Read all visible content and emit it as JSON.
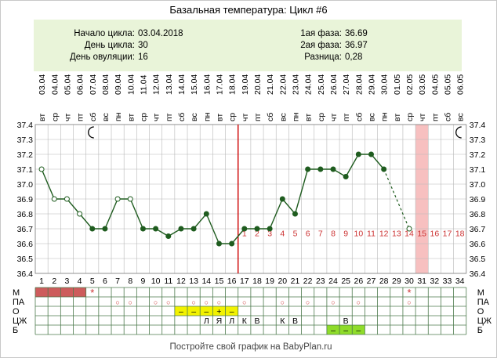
{
  "title": "Базальная температура: Цикл #6",
  "summary": {
    "left": [
      {
        "label": "Начало цикла:",
        "value": "03.04.2018"
      },
      {
        "label": "День цикла:",
        "value": "30"
      },
      {
        "label": "День овуляции:",
        "value": "16"
      }
    ],
    "right": [
      {
        "label": "1ая фаза:",
        "value": "36.69"
      },
      {
        "label": "2ая фаза:",
        "value": "36.97"
      },
      {
        "label": "Разница:",
        "value": "0,28"
      }
    ]
  },
  "footer": "Постройте свой график на BabyPlan.ru",
  "colors": {
    "line": "#1f5c1f",
    "ovulation": "#cc0000",
    "bg_panel": "#e9f4d9",
    "highlight": "#f7c0c0",
    "menses": "#cd5c5c",
    "mucus_yellow": "#f2f200",
    "ejac_green": "#8fdc2a",
    "post_day": "#cc3333",
    "grid": "#b8b8b8"
  },
  "icons": {
    "moon": "moon-icon",
    "star": "star-icon"
  },
  "chart_data": {
    "type": "line",
    "title": "Базальная температура: Цикл #6",
    "ylim": [
      36.4,
      37.4
    ],
    "yticks": [
      "37.4",
      "37.3",
      "37.2",
      "37.1",
      "37.0",
      "36.9",
      "36.8",
      "36.7",
      "36.6",
      "36.5",
      "36.4"
    ],
    "days": [
      1,
      2,
      3,
      4,
      5,
      6,
      7,
      8,
      9,
      10,
      11,
      12,
      13,
      14,
      15,
      16,
      17,
      18,
      19,
      20,
      21,
      22,
      23,
      24,
      25,
      26,
      27,
      28,
      29,
      30,
      31,
      32,
      33,
      34
    ],
    "dates": [
      "03.04",
      "04.04",
      "05.04",
      "06.04",
      "07.04",
      "08.04",
      "09.04",
      "10.04",
      "11.04",
      "12.04",
      "13.04",
      "14.04",
      "15.04",
      "16.04",
      "17.04",
      "18.04",
      "19.04",
      "20.04",
      "21.04",
      "22.04",
      "23.04",
      "24.04",
      "25.04",
      "26.04",
      "27.04",
      "28.04",
      "29.04",
      "30.04",
      "01.05",
      "02.05",
      "03.05",
      "04.05",
      "05.05",
      "06.05"
    ],
    "weekdays": [
      "вт",
      "ср",
      "чт",
      "пт",
      "сб",
      "вс",
      "пн",
      "вт",
      "ср",
      "чт",
      "пт",
      "сб",
      "вс",
      "пн",
      "вт",
      "ср",
      "чт",
      "пт",
      "сб",
      "вс",
      "пн",
      "вт",
      "ср",
      "чт",
      "пт",
      "сб",
      "вс",
      "пн",
      "вт",
      "ср",
      "чт",
      "пт",
      "сб",
      "вс"
    ],
    "temperatures": [
      37.1,
      36.9,
      36.9,
      36.8,
      36.7,
      36.7,
      36.9,
      36.9,
      36.7,
      36.7,
      36.65,
      36.7,
      36.7,
      36.8,
      36.6,
      36.6,
      36.7,
      36.7,
      36.7,
      36.9,
      36.8,
      37.1,
      37.1,
      37.1,
      37.05,
      37.2,
      37.2,
      37.1,
      null,
      36.7
    ],
    "hollow_points": [
      1,
      2,
      3,
      4,
      7,
      8,
      30
    ],
    "dashed_segment": [
      28,
      30
    ],
    "ovulation_day": 16,
    "post_ovulation_labels": [
      "1",
      "2",
      "3",
      "4",
      "5",
      "6",
      "7",
      "8",
      "9",
      "10",
      "11",
      "12",
      "13",
      "14",
      "15",
      "16",
      "17",
      "18"
    ],
    "highlight_day": 31,
    "moon_days": [
      5,
      34
    ],
    "rows": [
      {
        "label": "М",
        "menses_days": [
          1,
          2,
          3,
          4
        ],
        "star_days": [
          5,
          30
        ]
      },
      {
        "label": "ПА",
        "marks": {
          "7": "○",
          "8": "○",
          "10": "○",
          "11": "○",
          "13": "○",
          "14": "○",
          "15": "○",
          "17": "○",
          "20": "○",
          "22": "○",
          "24": "○",
          "26": "○",
          "30": "○"
        }
      },
      {
        "label": "О",
        "marks": {
          "12": "–",
          "13": "–",
          "14": "–",
          "15": "+",
          "16": "–"
        },
        "yellow_days": [
          12,
          13,
          14,
          15,
          16
        ]
      },
      {
        "label": "ЦЖ",
        "marks": {
          "14": "Л",
          "15": "Я",
          "16": "Л",
          "17": "К",
          "18": "В",
          "20": "К",
          "21": "В",
          "25": "В"
        }
      },
      {
        "label": "Б",
        "marks": {
          "24": "–",
          "25": "–",
          "26": "–"
        },
        "green_days": [
          24,
          25,
          26
        ]
      }
    ]
  }
}
